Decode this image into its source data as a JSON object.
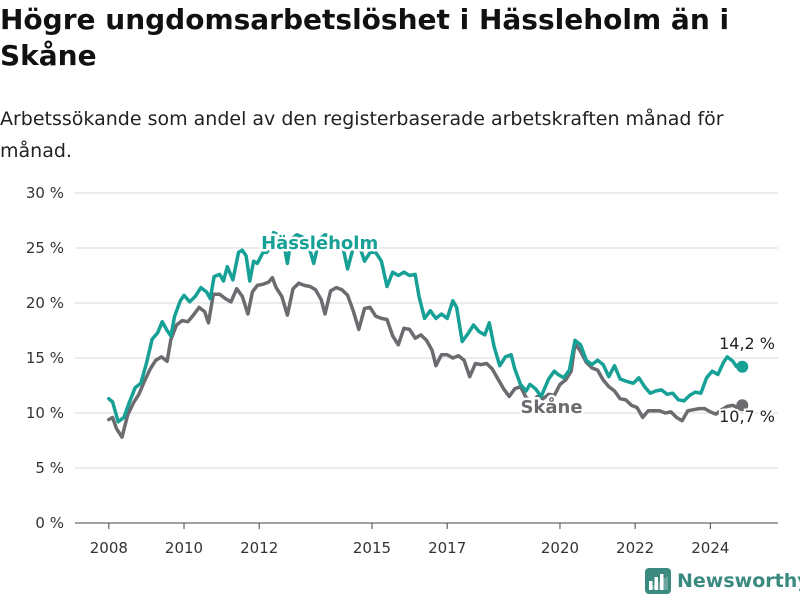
{
  "header": {
    "title": "Högre ungdomsarbetslöshet i Hässleholm än i Skåne",
    "subtitle": "Arbetssökande som andel av den registerbaserade arbetskraften månad för månad."
  },
  "brand": {
    "name": "Newsworthy",
    "icon": "bar-chart-logo-icon"
  },
  "colors": {
    "hassleholm": "#17a096",
    "skane": "#6b6b70",
    "grid": "#d9d9d9",
    "text": "#333333"
  },
  "chart_data": {
    "type": "line",
    "title": "Högre ungdomsarbetslöshet i Hässleholm än i Skåne",
    "subtitle": "Arbetssökande som andel av den registerbaserade arbetskraften månad för månad.",
    "xlabel": "",
    "ylabel": "",
    "x_ticks": [
      "2008",
      "2010",
      "2012",
      "2015",
      "2017",
      "2020",
      "2022",
      "2024"
    ],
    "y_ticks": [
      "0 %",
      "5 %",
      "10 %",
      "15 %",
      "20 %",
      "25 %",
      "30 %"
    ],
    "ylim": [
      0,
      30
    ],
    "xlim": [
      2007.1,
      2025.8
    ],
    "grid": true,
    "series": [
      {
        "name": "Hässleholm",
        "label": "Hässleholm",
        "end_label": "14,2 %",
        "color": "#17a096",
        "points": [
          [
            2008.0,
            11.3
          ],
          [
            2008.1,
            11.0
          ],
          [
            2008.25,
            9.2
          ],
          [
            2008.4,
            9.6
          ],
          [
            2008.55,
            11.0
          ],
          [
            2008.7,
            12.3
          ],
          [
            2008.85,
            12.7
          ],
          [
            2009.0,
            14.5
          ],
          [
            2009.15,
            16.7
          ],
          [
            2009.3,
            17.3
          ],
          [
            2009.42,
            18.3
          ],
          [
            2009.55,
            17.5
          ],
          [
            2009.65,
            17.0
          ],
          [
            2009.75,
            18.8
          ],
          [
            2009.9,
            20.2
          ],
          [
            2010.0,
            20.7
          ],
          [
            2010.15,
            20.1
          ],
          [
            2010.3,
            20.6
          ],
          [
            2010.45,
            21.4
          ],
          [
            2010.6,
            21.0
          ],
          [
            2010.7,
            20.4
          ],
          [
            2010.8,
            22.4
          ],
          [
            2010.95,
            22.6
          ],
          [
            2011.05,
            22.0
          ],
          [
            2011.15,
            23.3
          ],
          [
            2011.3,
            22.1
          ],
          [
            2011.45,
            24.6
          ],
          [
            2011.55,
            24.8
          ],
          [
            2011.65,
            24.3
          ],
          [
            2011.75,
            22.0
          ],
          [
            2011.85,
            23.8
          ],
          [
            2011.95,
            23.6
          ],
          [
            2012.1,
            24.6
          ],
          [
            2012.2,
            24.6
          ],
          [
            2012.3,
            25.1
          ],
          [
            2012.38,
            26.4
          ],
          [
            2012.5,
            26.2
          ],
          [
            2012.65,
            25.5
          ],
          [
            2012.75,
            23.6
          ],
          [
            2012.85,
            25.8
          ],
          [
            2013.0,
            26.2
          ],
          [
            2013.15,
            26.0
          ],
          [
            2013.3,
            25.4
          ],
          [
            2013.45,
            23.6
          ],
          [
            2013.6,
            25.8
          ],
          [
            2013.75,
            26.2
          ],
          [
            2013.9,
            26.1
          ],
          [
            2014.05,
            25.8
          ],
          [
            2014.2,
            25.5
          ],
          [
            2014.35,
            23.1
          ],
          [
            2014.5,
            25.0
          ],
          [
            2014.65,
            25.4
          ],
          [
            2014.8,
            23.8
          ],
          [
            2014.95,
            24.6
          ],
          [
            2015.1,
            24.6
          ],
          [
            2015.25,
            23.8
          ],
          [
            2015.4,
            21.5
          ],
          [
            2015.55,
            22.8
          ],
          [
            2015.7,
            22.5
          ],
          [
            2015.85,
            22.8
          ],
          [
            2016.0,
            22.5
          ],
          [
            2016.15,
            22.6
          ],
          [
            2016.25,
            20.6
          ],
          [
            2016.4,
            18.6
          ],
          [
            2016.55,
            19.3
          ],
          [
            2016.7,
            18.6
          ],
          [
            2016.85,
            19.0
          ],
          [
            2017.0,
            18.6
          ],
          [
            2017.15,
            20.2
          ],
          [
            2017.25,
            19.6
          ],
          [
            2017.4,
            16.5
          ],
          [
            2017.55,
            17.2
          ],
          [
            2017.7,
            18.0
          ],
          [
            2017.85,
            17.4
          ],
          [
            2018.0,
            17.1
          ],
          [
            2018.12,
            18.2
          ],
          [
            2018.25,
            16.0
          ],
          [
            2018.4,
            14.3
          ],
          [
            2018.55,
            15.1
          ],
          [
            2018.7,
            15.3
          ],
          [
            2018.8,
            14.0
          ],
          [
            2018.95,
            12.6
          ],
          [
            2019.1,
            12.0
          ],
          [
            2019.2,
            12.6
          ],
          [
            2019.35,
            12.2
          ],
          [
            2019.5,
            11.5
          ],
          [
            2019.6,
            12.3
          ],
          [
            2019.7,
            13.1
          ],
          [
            2019.85,
            13.8
          ],
          [
            2019.95,
            13.5
          ],
          [
            2020.1,
            13.2
          ],
          [
            2020.25,
            13.9
          ],
          [
            2020.4,
            16.6
          ],
          [
            2020.55,
            16.2
          ],
          [
            2020.7,
            14.8
          ],
          [
            2020.85,
            14.4
          ],
          [
            2021.0,
            14.8
          ],
          [
            2021.15,
            14.4
          ],
          [
            2021.3,
            13.3
          ],
          [
            2021.45,
            14.3
          ],
          [
            2021.6,
            13.1
          ],
          [
            2021.75,
            12.9
          ],
          [
            2021.95,
            12.7
          ],
          [
            2022.1,
            13.2
          ],
          [
            2022.25,
            12.4
          ],
          [
            2022.4,
            11.8
          ],
          [
            2022.55,
            12.0
          ],
          [
            2022.7,
            12.1
          ],
          [
            2022.85,
            11.7
          ],
          [
            2023.0,
            11.8
          ],
          [
            2023.15,
            11.2
          ],
          [
            2023.3,
            11.1
          ],
          [
            2023.45,
            11.6
          ],
          [
            2023.6,
            11.9
          ],
          [
            2023.75,
            11.8
          ],
          [
            2023.9,
            13.2
          ],
          [
            2024.05,
            13.8
          ],
          [
            2024.2,
            13.5
          ],
          [
            2024.35,
            14.6
          ],
          [
            2024.45,
            15.1
          ],
          [
            2024.6,
            14.7
          ],
          [
            2024.7,
            14.2
          ],
          [
            2024.85,
            14.2
          ]
        ]
      },
      {
        "name": "Skåne",
        "label": "Skåne",
        "end_label": "10,7 %",
        "color": "#6b6b70",
        "points": [
          [
            2008.0,
            9.4
          ],
          [
            2008.1,
            9.6
          ],
          [
            2008.2,
            8.6
          ],
          [
            2008.35,
            7.8
          ],
          [
            2008.5,
            9.8
          ],
          [
            2008.65,
            10.9
          ],
          [
            2008.8,
            11.7
          ],
          [
            2008.95,
            12.9
          ],
          [
            2009.1,
            14.0
          ],
          [
            2009.25,
            14.8
          ],
          [
            2009.4,
            15.1
          ],
          [
            2009.55,
            14.7
          ],
          [
            2009.65,
            16.7
          ],
          [
            2009.8,
            18.0
          ],
          [
            2009.95,
            18.4
          ],
          [
            2010.1,
            18.3
          ],
          [
            2010.25,
            18.9
          ],
          [
            2010.4,
            19.6
          ],
          [
            2010.55,
            19.2
          ],
          [
            2010.65,
            18.2
          ],
          [
            2010.78,
            20.8
          ],
          [
            2010.95,
            20.8
          ],
          [
            2011.1,
            20.4
          ],
          [
            2011.25,
            20.1
          ],
          [
            2011.4,
            21.3
          ],
          [
            2011.55,
            20.6
          ],
          [
            2011.7,
            19.0
          ],
          [
            2011.82,
            21.0
          ],
          [
            2011.95,
            21.6
          ],
          [
            2012.1,
            21.7
          ],
          [
            2012.25,
            21.9
          ],
          [
            2012.35,
            22.3
          ],
          [
            2012.45,
            21.4
          ],
          [
            2012.6,
            20.6
          ],
          [
            2012.75,
            18.9
          ],
          [
            2012.9,
            21.3
          ],
          [
            2013.05,
            21.8
          ],
          [
            2013.2,
            21.6
          ],
          [
            2013.35,
            21.5
          ],
          [
            2013.5,
            21.2
          ],
          [
            2013.65,
            20.3
          ],
          [
            2013.75,
            19.0
          ],
          [
            2013.9,
            21.1
          ],
          [
            2014.05,
            21.4
          ],
          [
            2014.2,
            21.2
          ],
          [
            2014.35,
            20.7
          ],
          [
            2014.5,
            19.3
          ],
          [
            2014.65,
            17.6
          ],
          [
            2014.8,
            19.5
          ],
          [
            2014.95,
            19.6
          ],
          [
            2015.1,
            18.8
          ],
          [
            2015.25,
            18.6
          ],
          [
            2015.4,
            18.5
          ],
          [
            2015.55,
            17.0
          ],
          [
            2015.7,
            16.2
          ],
          [
            2015.85,
            17.7
          ],
          [
            2016.0,
            17.6
          ],
          [
            2016.15,
            16.8
          ],
          [
            2016.3,
            17.1
          ],
          [
            2016.45,
            16.6
          ],
          [
            2016.6,
            15.7
          ],
          [
            2016.7,
            14.3
          ],
          [
            2016.85,
            15.3
          ],
          [
            2017.0,
            15.3
          ],
          [
            2017.15,
            15.0
          ],
          [
            2017.3,
            15.2
          ],
          [
            2017.45,
            14.8
          ],
          [
            2017.6,
            13.3
          ],
          [
            2017.75,
            14.5
          ],
          [
            2017.9,
            14.4
          ],
          [
            2018.05,
            14.5
          ],
          [
            2018.2,
            14.0
          ],
          [
            2018.35,
            13.1
          ],
          [
            2018.5,
            12.2
          ],
          [
            2018.65,
            11.5
          ],
          [
            2018.8,
            12.2
          ],
          [
            2018.95,
            12.4
          ],
          [
            2019.1,
            11.4
          ],
          [
            2019.25,
            11.0
          ],
          [
            2019.4,
            11.5
          ],
          [
            2019.55,
            11.3
          ],
          [
            2019.7,
            11.7
          ],
          [
            2019.85,
            11.6
          ],
          [
            2020.0,
            12.6
          ],
          [
            2020.15,
            13.0
          ],
          [
            2020.3,
            13.8
          ],
          [
            2020.4,
            16.3
          ],
          [
            2020.55,
            15.6
          ],
          [
            2020.7,
            14.6
          ],
          [
            2020.85,
            14.1
          ],
          [
            2021.0,
            13.9
          ],
          [
            2021.15,
            13.0
          ],
          [
            2021.3,
            12.4
          ],
          [
            2021.45,
            12.0
          ],
          [
            2021.6,
            11.3
          ],
          [
            2021.75,
            11.2
          ],
          [
            2021.9,
            10.7
          ],
          [
            2022.05,
            10.5
          ],
          [
            2022.2,
            9.6
          ],
          [
            2022.35,
            10.2
          ],
          [
            2022.5,
            10.2
          ],
          [
            2022.65,
            10.2
          ],
          [
            2022.8,
            10.0
          ],
          [
            2022.95,
            10.1
          ],
          [
            2023.1,
            9.6
          ],
          [
            2023.25,
            9.3
          ],
          [
            2023.4,
            10.2
          ],
          [
            2023.55,
            10.3
          ],
          [
            2023.7,
            10.4
          ],
          [
            2023.85,
            10.4
          ],
          [
            2024.0,
            10.1
          ],
          [
            2024.15,
            9.9
          ],
          [
            2024.3,
            10.3
          ],
          [
            2024.45,
            10.6
          ],
          [
            2024.6,
            10.7
          ],
          [
            2024.7,
            10.5
          ],
          [
            2024.85,
            10.7
          ]
        ]
      }
    ]
  }
}
